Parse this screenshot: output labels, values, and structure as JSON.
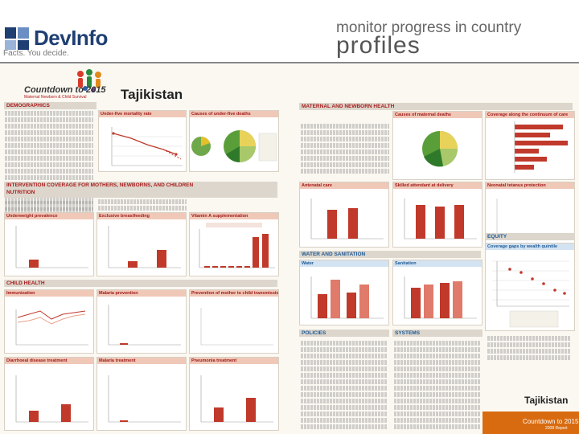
{
  "header": {
    "logo_name": "DevInfo",
    "tagline": "Facts. You decide.",
    "title_line1": "monitor progress in country",
    "title_line2": "profiles"
  },
  "profile": {
    "brand_title": "Countdown to 2015",
    "brand_subtitle": "Maternal Newborn & Child Survival",
    "country": "Tajikistan",
    "sections": {
      "demographics": "DEMOGRAPHICS",
      "maternal": "MATERNAL AND NEWBORN HEALTH",
      "intervention": "INTERVENTION COVERAGE FOR MOTHERS, NEWBORNS, AND CHILDREN",
      "nutrition": "NUTRITION",
      "child_health": "CHILD HEALTH",
      "water": "WATER AND SANITATION",
      "equity": "EQUITY",
      "policies": "POLICIES",
      "systems": "SYSTEMS"
    },
    "panels": {
      "under5": "Under-five mortality rate",
      "causes_u5": "Causes of under-five deaths",
      "causes_maternal": "Causes of maternal deaths",
      "continuum": "Coverage along the continuum of care",
      "antenatal": "Antenatal care",
      "skilled": "Skilled attendant at delivery",
      "neonatal_tetanus": "Neonatal tetanus protection",
      "underweight": "Underweight prevalence",
      "breastfeeding": "Exclusive breastfeeding",
      "vitamin_a": "Vitamin A supplementation",
      "water": "Water",
      "sanitation": "Sanitation",
      "wealth": "Coverage gaps by wealth quintile",
      "immunization": "Immunization",
      "malaria": "Malaria prevention",
      "pmtct": "Prevention of mother to child transmission of HIV",
      "diarrhoea": "Diarrhoeal disease treatment",
      "malaria_treat": "Malaria treatment",
      "pneumonia": "Pneumonia treatment"
    },
    "side_country": "Tajikistan",
    "footer_line1": "Countdown to 2015",
    "footer_line2": "2008 Report"
  },
  "colors": {
    "accent_red": "#a81c1c",
    "accent_blue": "#1d5a96",
    "orange": "#d86b10",
    "bar_red": "#c0392b"
  }
}
